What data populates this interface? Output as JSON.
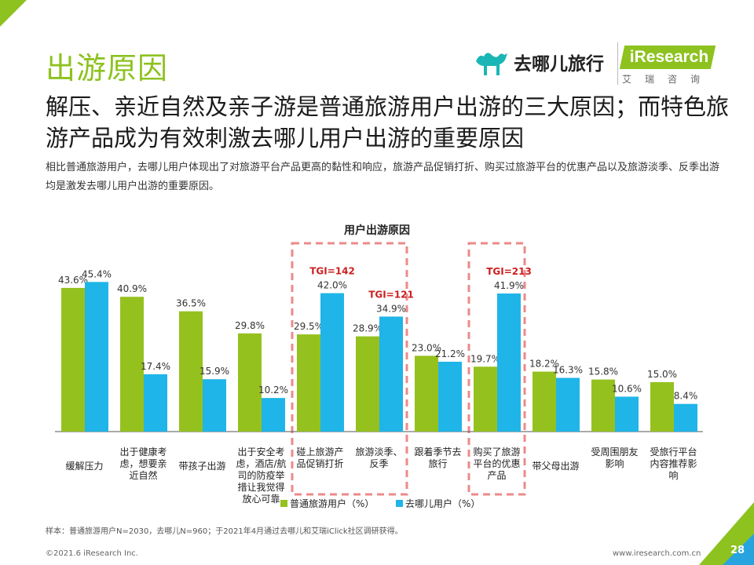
{
  "page": {
    "title": "出游原因",
    "headline": "解压、亲近自然及亲子游是普通旅游用户出游的三大原因；而特色旅游产品成为有效刺激去哪儿用户出游的重要原因",
    "description": "相比普通旅游用户，去哪儿用户体现出了对旅游平台产品更高的黏性和响应，旅游产品促销打折、购买过旅游平台的优惠产品以及旅游淡季、反季出游均是激发去哪儿用户出游的重要原因。",
    "logo_qunar": "去哪儿旅行",
    "logo_iresearch": "iResearch",
    "logo_iresearch_cn": "艾瑞咨询",
    "note": "样本：普通旅游用户N=2030，去哪儿N=960；于2021年4月通过去哪儿和艾瑞iClick社区调研获得。",
    "copyright": "©2021.6 iResearch Inc.",
    "website": "www.iresearch.com.cn",
    "page_number": "28"
  },
  "colors": {
    "green": "#95c11f",
    "blue": "#1fb5e8",
    "accent": "#8dc21f",
    "highlight": "#ec8a8a",
    "tgi": "#cc1f1f"
  },
  "chart_data": {
    "type": "bar",
    "title": "用户出游原因",
    "categories": [
      "缓解压力",
      "出于健康考虑，想要亲近自然",
      "带孩子出游",
      "出于安全考虑，酒店/航司的防疫举措让我觉得放心可靠",
      "碰上旅游产品促销打折",
      "旅游淡季、反季",
      "跟着季节去旅行",
      "购买了旅游平台的优惠产品",
      "带父母出游",
      "受周围朋友影响",
      "受旅行平台内容推荐影响"
    ],
    "category_lines": [
      [
        "缓解压力"
      ],
      [
        "出于健康考",
        "虑，想要亲",
        "近自然"
      ],
      [
        "带孩子出游"
      ],
      [
        "出于安全考",
        "虑，酒店/航",
        "司的防疫举",
        "措让我觉得",
        "放心可靠"
      ],
      [
        "碰上旅游产",
        "品促销打折"
      ],
      [
        "旅游淡季、",
        "反季"
      ],
      [
        "跟着季节去",
        "旅行"
      ],
      [
        "购买了旅游",
        "平台的优惠",
        "产品"
      ],
      [
        "带父母出游"
      ],
      [
        "受周围朋友",
        "影响"
      ],
      [
        "受旅行平台",
        "内容推荐影",
        "响"
      ]
    ],
    "series": [
      {
        "name": "普通旅游用户（%）",
        "values": [
          43.6,
          40.9,
          36.5,
          29.8,
          29.5,
          28.9,
          23.0,
          19.7,
          18.2,
          15.8,
          15.0
        ]
      },
      {
        "name": "去哪儿用户（%）",
        "values": [
          45.4,
          17.4,
          15.9,
          10.2,
          42.0,
          34.9,
          21.2,
          41.9,
          16.3,
          10.6,
          8.4
        ]
      }
    ],
    "value_labels": [
      [
        "43.6%",
        "40.9%",
        "36.5%",
        "29.8%",
        "29.5%",
        "28.9%",
        "23.0%",
        "19.7%",
        "18.2%",
        "15.8%",
        "15.0%"
      ],
      [
        "45.4%",
        "17.4%",
        "15.9%",
        "10.2%",
        "42.0%",
        "34.9%",
        "21.2%",
        "41.9%",
        "16.3%",
        "10.6%",
        "8.4%"
      ]
    ],
    "ylim": [
      0,
      50
    ],
    "annotations": [
      {
        "text": "TGI=142",
        "category_index": 4
      },
      {
        "text": "TGI=121",
        "category_index": 5
      },
      {
        "text": "TGI=213",
        "category_index": 7
      }
    ],
    "highlight_groups": [
      [
        4,
        5
      ],
      [
        7
      ]
    ],
    "legend_position": "bottom"
  }
}
